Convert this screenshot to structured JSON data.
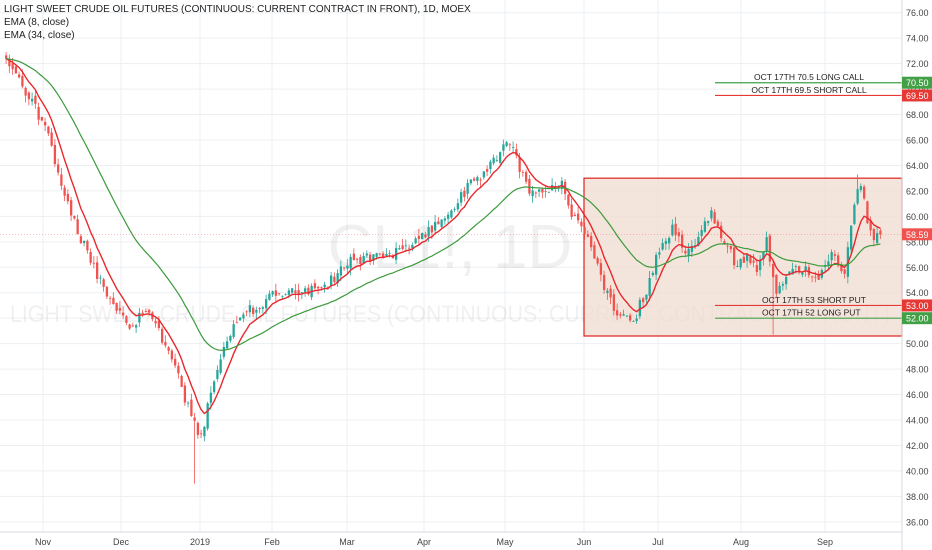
{
  "header": {
    "title": "LIGHT SWEET CRUDE OIL FUTURES (CONTINUOUS: CURRENT CONTRACT IN FRONT), 1D, MOEX",
    "indicators": [
      "EMA (8, close)",
      "EMA (34, close)"
    ]
  },
  "watermark": {
    "symbol": "CL1!, 1D",
    "name": "LIGHT SWEET CRUDE OIL FUTURES (CONTINUOUS: CURRENT CONTRACT IN FRONT)"
  },
  "colors": {
    "up": "#26a69a",
    "down": "#ef5350",
    "ema_fast": "#e8282d",
    "ema_slow": "#3c9a3c",
    "box_fill": "#f0dcd0",
    "box_border": "#e02020",
    "grid": "#eceff2"
  },
  "chart_data": {
    "type": "candlestick",
    "title": "LIGHT SWEET CRUDE OIL FUTURES (CONTINUOUS: CURRENT CONTRACT IN FRONT), 1D, MOEX",
    "x_axis": {
      "tick_labels": [
        "Nov",
        "Dec",
        "2019",
        "Feb",
        "Mar",
        "Apr",
        "May",
        "Jun",
        "Jul",
        "Aug",
        "Sep"
      ]
    },
    "y_axis": {
      "range": [
        35.2,
        77.0
      ],
      "ticks": [
        36,
        38,
        40,
        42,
        44,
        46,
        48,
        50,
        52,
        54,
        56,
        58,
        60,
        62,
        64,
        66,
        68,
        70,
        72,
        74,
        76
      ],
      "tick_format": "fixed2"
    },
    "grid": true,
    "series": [
      {
        "name": "EMA (8, close)",
        "kind": "ema",
        "period": 8
      },
      {
        "name": "EMA (34, close)",
        "kind": "ema",
        "period": 34
      }
    ],
    "path_keypoints_close": [
      [
        0,
        72.4
      ],
      [
        6,
        69.8
      ],
      [
        12,
        67.0
      ],
      [
        19,
        61.0
      ],
      [
        25,
        57.0
      ],
      [
        32,
        53.5
      ],
      [
        38,
        51.6
      ],
      [
        44,
        52.4
      ],
      [
        50,
        49.5
      ],
      [
        56,
        45.0
      ],
      [
        60,
        42.6
      ],
      [
        63,
        46.5
      ],
      [
        68,
        50.5
      ],
      [
        75,
        52.6
      ],
      [
        82,
        53.8
      ],
      [
        90,
        54.0
      ],
      [
        97,
        54.2
      ],
      [
        105,
        56.3
      ],
      [
        112,
        56.8
      ],
      [
        120,
        57.2
      ],
      [
        128,
        58.5
      ],
      [
        136,
        60.3
      ],
      [
        143,
        62.5
      ],
      [
        150,
        64.2
      ],
      [
        154,
        66.0
      ],
      [
        157,
        64.5
      ],
      [
        161,
        62.2
      ],
      [
        166,
        61.8
      ],
      [
        171,
        62.6
      ],
      [
        174,
        60.2
      ],
      [
        179,
        58.0
      ],
      [
        184,
        54.5
      ],
      [
        188,
        52.1
      ],
      [
        193,
        51.8
      ],
      [
        197,
        54.2
      ],
      [
        201,
        57.5
      ],
      [
        205,
        59.0
      ],
      [
        209,
        57.3
      ],
      [
        213,
        58.2
      ],
      [
        217,
        60.3
      ],
      [
        221,
        58.2
      ],
      [
        225,
        56.0
      ],
      [
        228,
        57.0
      ],
      [
        231,
        55.8
      ],
      [
        234,
        58.0
      ],
      [
        237,
        53.8
      ],
      [
        241,
        55.5
      ],
      [
        245,
        56.0
      ],
      [
        249,
        55.0
      ],
      [
        252,
        56.3
      ],
      [
        255,
        57.2
      ],
      [
        258,
        55.2
      ],
      [
        261,
        61.2
      ],
      [
        263,
        62.8
      ],
      [
        265,
        59.5
      ],
      [
        267,
        58.2
      ],
      [
        269,
        59.0
      ]
    ],
    "annotations": [
      {
        "label": "OCT 17TH 70.5 LONG CALL",
        "price": 70.5,
        "price_label": "70.50",
        "color": "#43a047"
      },
      {
        "label": "OCT 17TH 69.5 SHORT CALL",
        "price": 69.5,
        "price_label": "69.50",
        "color": "#e53935"
      },
      {
        "label": "OCT 17TH 53 SHORT PUT",
        "price": 53.0,
        "price_label": "53.00",
        "color": "#e53935"
      },
      {
        "label": "OCT 17TH 52 LONG PUT",
        "price": 52.0,
        "price_label": "52.00",
        "color": "#43a047"
      }
    ],
    "range_box": {
      "from": "Jun",
      "top": 63.0,
      "bottom": 50.6
    },
    "last_price": {
      "value": 58.59,
      "label": "58.59"
    }
  }
}
